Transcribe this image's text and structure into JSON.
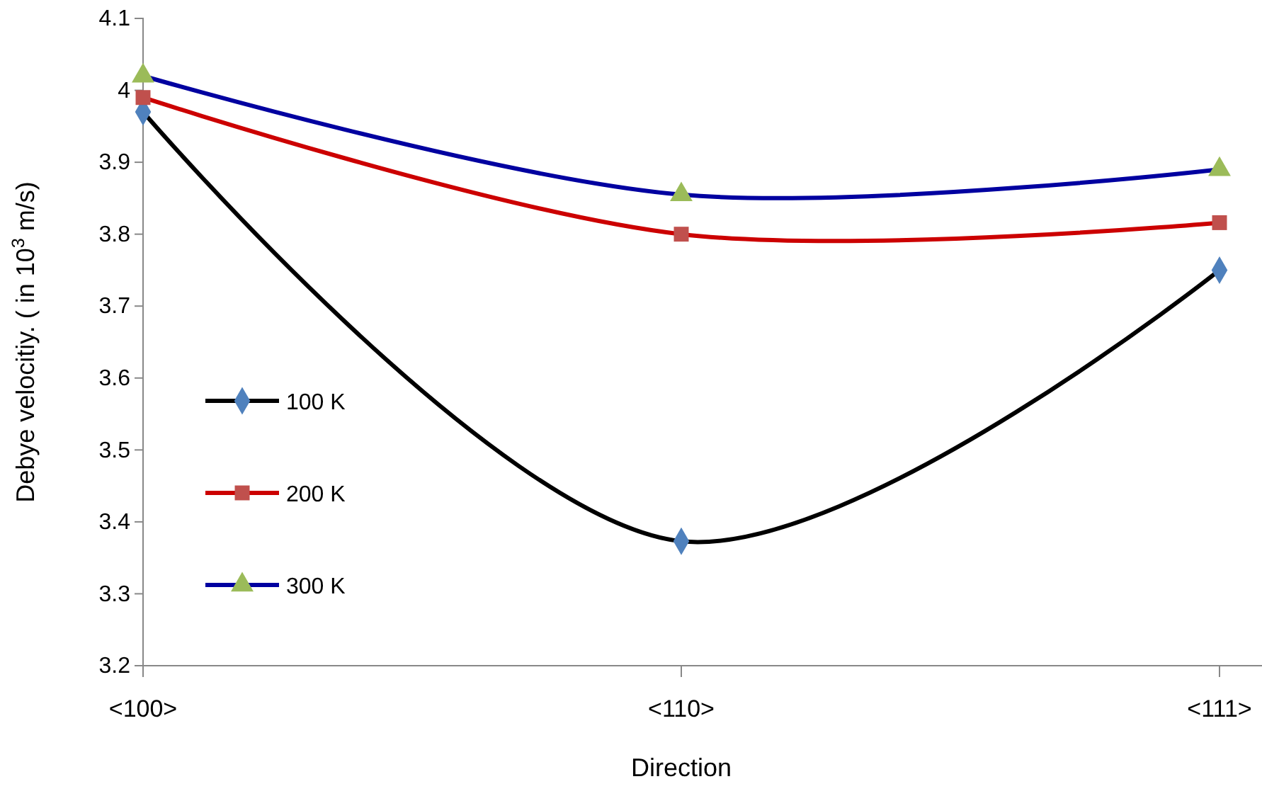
{
  "chart_data": {
    "type": "line",
    "xlabel": "Direction",
    "ylabel": "Debye velocitiy. ( in 10$^{3}$ m/s)",
    "categories": [
      "<100>",
      "<110>",
      "<111>"
    ],
    "ylim": [
      3.2,
      4.1
    ],
    "yticks": [
      3.2,
      3.3,
      3.4,
      3.5,
      3.6,
      3.7,
      3.8,
      3.9,
      4,
      4.1
    ],
    "legend": "left",
    "grid": false,
    "series": [
      {
        "name": "100 K",
        "color": "#000000",
        "colors": [
          "#4f81bd",
          "#4f81bd",
          "#4f81bd"
        ],
        "marker": "diamond",
        "values": [
          3.97,
          3.373,
          3.75
        ]
      },
      {
        "name": "200 K",
        "color": "#cc0000",
        "colors": [
          "#c0504d",
          "#c0504d",
          "#c0504d"
        ],
        "marker": "square",
        "values": [
          3.99,
          3.8,
          3.816
        ]
      },
      {
        "name": "300 K",
        "color": "#0000a0",
        "colors": [
          "#9bbb59",
          "#9bbb59",
          "#9bbb59"
        ],
        "marker": "triangle",
        "values": [
          4.02,
          3.855,
          3.89
        ]
      }
    ]
  }
}
